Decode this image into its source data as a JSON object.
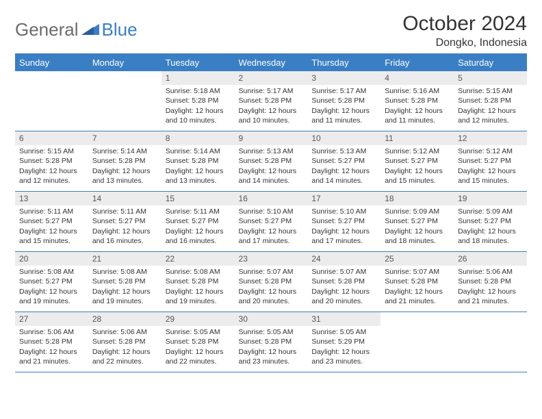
{
  "brand": {
    "text1": "General",
    "text2": "Blue"
  },
  "title": "October 2024",
  "location": "Dongko, Indonesia",
  "colors": {
    "accent": "#3a7fc4",
    "header_bg": "#3a7fc4",
    "header_text": "#ffffff",
    "daynum_bg": "#ececec",
    "body_text": "#333333",
    "logo_gray": "#6a6a6a"
  },
  "dayHeaders": [
    "Sunday",
    "Monday",
    "Tuesday",
    "Wednesday",
    "Thursday",
    "Friday",
    "Saturday"
  ],
  "weeks": [
    [
      null,
      null,
      {
        "n": "1",
        "sr": "Sunrise: 5:18 AM",
        "ss": "Sunset: 5:28 PM",
        "dl": "Daylight: 12 hours and 10 minutes."
      },
      {
        "n": "2",
        "sr": "Sunrise: 5:17 AM",
        "ss": "Sunset: 5:28 PM",
        "dl": "Daylight: 12 hours and 10 minutes."
      },
      {
        "n": "3",
        "sr": "Sunrise: 5:17 AM",
        "ss": "Sunset: 5:28 PM",
        "dl": "Daylight: 12 hours and 11 minutes."
      },
      {
        "n": "4",
        "sr": "Sunrise: 5:16 AM",
        "ss": "Sunset: 5:28 PM",
        "dl": "Daylight: 12 hours and 11 minutes."
      },
      {
        "n": "5",
        "sr": "Sunrise: 5:15 AM",
        "ss": "Sunset: 5:28 PM",
        "dl": "Daylight: 12 hours and 12 minutes."
      }
    ],
    [
      {
        "n": "6",
        "sr": "Sunrise: 5:15 AM",
        "ss": "Sunset: 5:28 PM",
        "dl": "Daylight: 12 hours and 12 minutes."
      },
      {
        "n": "7",
        "sr": "Sunrise: 5:14 AM",
        "ss": "Sunset: 5:28 PM",
        "dl": "Daylight: 12 hours and 13 minutes."
      },
      {
        "n": "8",
        "sr": "Sunrise: 5:14 AM",
        "ss": "Sunset: 5:28 PM",
        "dl": "Daylight: 12 hours and 13 minutes."
      },
      {
        "n": "9",
        "sr": "Sunrise: 5:13 AM",
        "ss": "Sunset: 5:28 PM",
        "dl": "Daylight: 12 hours and 14 minutes."
      },
      {
        "n": "10",
        "sr": "Sunrise: 5:13 AM",
        "ss": "Sunset: 5:27 PM",
        "dl": "Daylight: 12 hours and 14 minutes."
      },
      {
        "n": "11",
        "sr": "Sunrise: 5:12 AM",
        "ss": "Sunset: 5:27 PM",
        "dl": "Daylight: 12 hours and 15 minutes."
      },
      {
        "n": "12",
        "sr": "Sunrise: 5:12 AM",
        "ss": "Sunset: 5:27 PM",
        "dl": "Daylight: 12 hours and 15 minutes."
      }
    ],
    [
      {
        "n": "13",
        "sr": "Sunrise: 5:11 AM",
        "ss": "Sunset: 5:27 PM",
        "dl": "Daylight: 12 hours and 15 minutes."
      },
      {
        "n": "14",
        "sr": "Sunrise: 5:11 AM",
        "ss": "Sunset: 5:27 PM",
        "dl": "Daylight: 12 hours and 16 minutes."
      },
      {
        "n": "15",
        "sr": "Sunrise: 5:11 AM",
        "ss": "Sunset: 5:27 PM",
        "dl": "Daylight: 12 hours and 16 minutes."
      },
      {
        "n": "16",
        "sr": "Sunrise: 5:10 AM",
        "ss": "Sunset: 5:27 PM",
        "dl": "Daylight: 12 hours and 17 minutes."
      },
      {
        "n": "17",
        "sr": "Sunrise: 5:10 AM",
        "ss": "Sunset: 5:27 PM",
        "dl": "Daylight: 12 hours and 17 minutes."
      },
      {
        "n": "18",
        "sr": "Sunrise: 5:09 AM",
        "ss": "Sunset: 5:27 PM",
        "dl": "Daylight: 12 hours and 18 minutes."
      },
      {
        "n": "19",
        "sr": "Sunrise: 5:09 AM",
        "ss": "Sunset: 5:27 PM",
        "dl": "Daylight: 12 hours and 18 minutes."
      }
    ],
    [
      {
        "n": "20",
        "sr": "Sunrise: 5:08 AM",
        "ss": "Sunset: 5:27 PM",
        "dl": "Daylight: 12 hours and 19 minutes."
      },
      {
        "n": "21",
        "sr": "Sunrise: 5:08 AM",
        "ss": "Sunset: 5:28 PM",
        "dl": "Daylight: 12 hours and 19 minutes."
      },
      {
        "n": "22",
        "sr": "Sunrise: 5:08 AM",
        "ss": "Sunset: 5:28 PM",
        "dl": "Daylight: 12 hours and 19 minutes."
      },
      {
        "n": "23",
        "sr": "Sunrise: 5:07 AM",
        "ss": "Sunset: 5:28 PM",
        "dl": "Daylight: 12 hours and 20 minutes."
      },
      {
        "n": "24",
        "sr": "Sunrise: 5:07 AM",
        "ss": "Sunset: 5:28 PM",
        "dl": "Daylight: 12 hours and 20 minutes."
      },
      {
        "n": "25",
        "sr": "Sunrise: 5:07 AM",
        "ss": "Sunset: 5:28 PM",
        "dl": "Daylight: 12 hours and 21 minutes."
      },
      {
        "n": "26",
        "sr": "Sunrise: 5:06 AM",
        "ss": "Sunset: 5:28 PM",
        "dl": "Daylight: 12 hours and 21 minutes."
      }
    ],
    [
      {
        "n": "27",
        "sr": "Sunrise: 5:06 AM",
        "ss": "Sunset: 5:28 PM",
        "dl": "Daylight: 12 hours and 21 minutes."
      },
      {
        "n": "28",
        "sr": "Sunrise: 5:06 AM",
        "ss": "Sunset: 5:28 PM",
        "dl": "Daylight: 12 hours and 22 minutes."
      },
      {
        "n": "29",
        "sr": "Sunrise: 5:05 AM",
        "ss": "Sunset: 5:28 PM",
        "dl": "Daylight: 12 hours and 22 minutes."
      },
      {
        "n": "30",
        "sr": "Sunrise: 5:05 AM",
        "ss": "Sunset: 5:28 PM",
        "dl": "Daylight: 12 hours and 23 minutes."
      },
      {
        "n": "31",
        "sr": "Sunrise: 5:05 AM",
        "ss": "Sunset: 5:29 PM",
        "dl": "Daylight: 12 hours and 23 minutes."
      },
      null,
      null
    ]
  ]
}
